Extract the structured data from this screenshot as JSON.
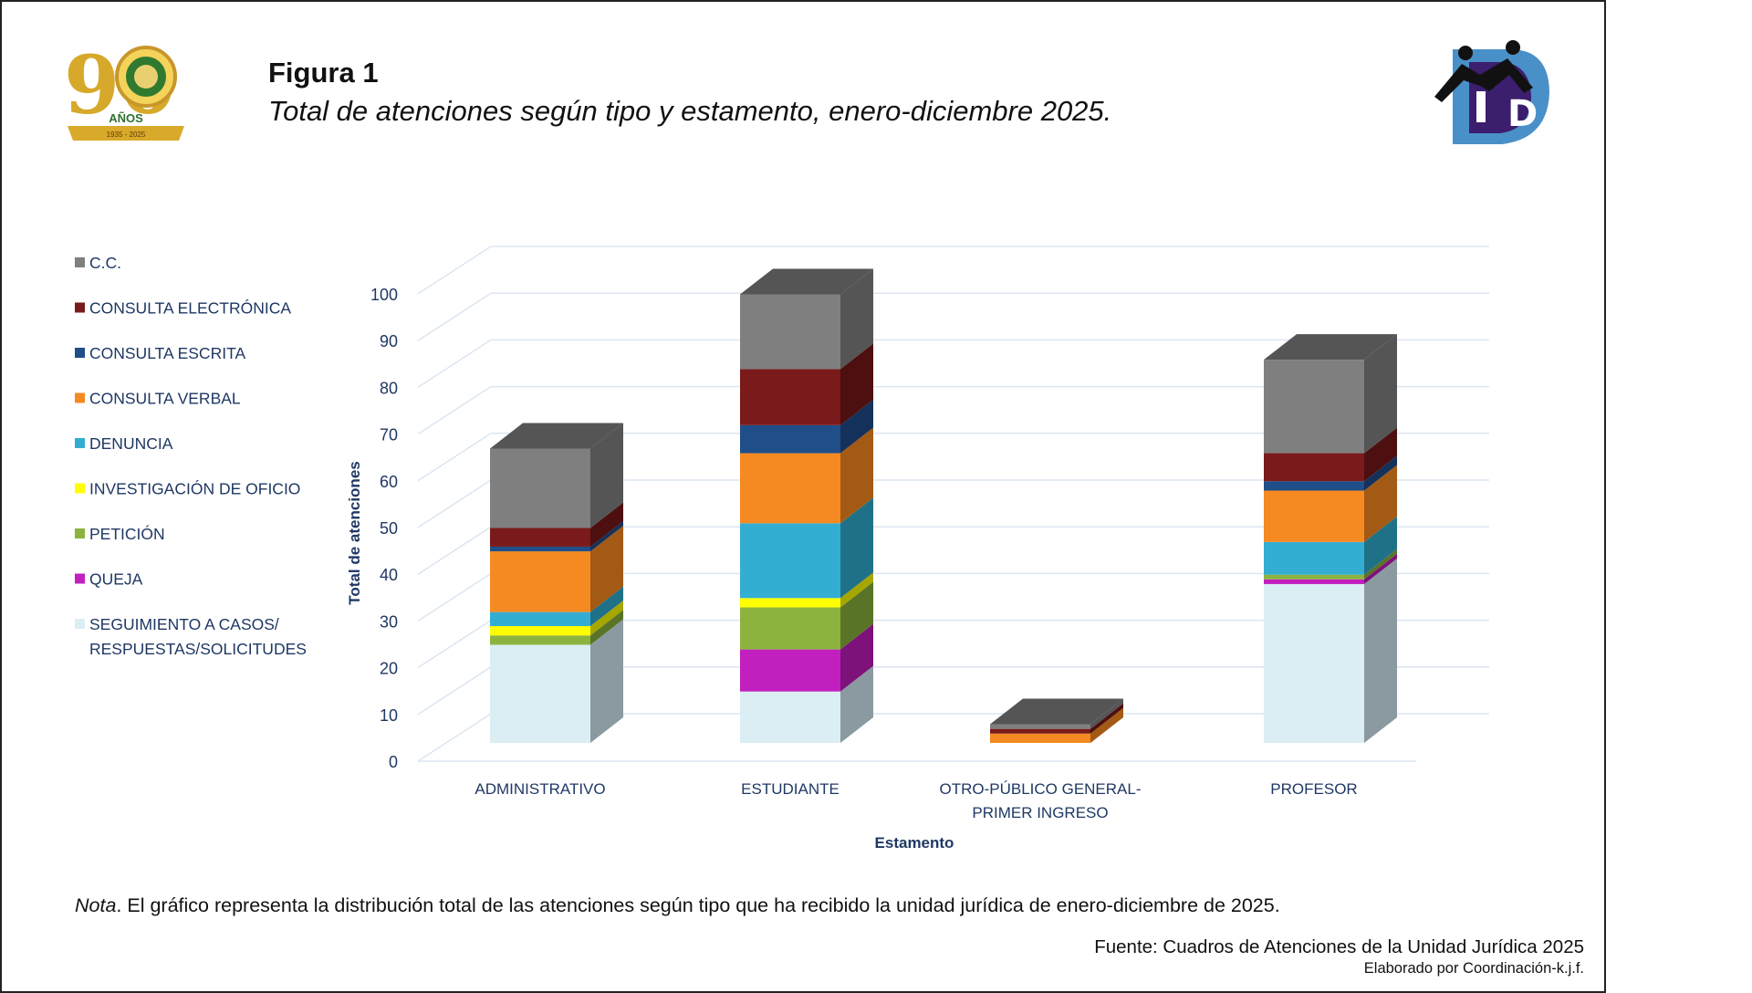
{
  "header": {
    "figure_label": "Figura 1",
    "figure_title": "Total de atenciones según tipo y estamento, enero-diciembre 2025."
  },
  "logos": {
    "left": {
      "number": "90",
      "subtitle": "AÑOS",
      "years": "1935 - 2025"
    },
    "right": {
      "letter": "D"
    }
  },
  "chart_data": {
    "type": "bar",
    "stacked": true,
    "three_d": true,
    "title": "Total de atenciones según tipo y estamento, enero-diciembre 2025.",
    "xlabel": "Estamento",
    "ylabel": "Total de atenciones",
    "ylim": [
      0,
      100
    ],
    "yticks": [
      0,
      10,
      20,
      30,
      40,
      50,
      60,
      70,
      80,
      90,
      100
    ],
    "categories": [
      [
        "ADMINISTRATIVO"
      ],
      [
        "ESTUDIANTE"
      ],
      [
        "OTRO-PÚBLICO GENERAL-",
        "PRIMER INGRESO"
      ],
      [
        "PROFESOR"
      ]
    ],
    "legend_position": "left",
    "series": [
      {
        "name": "SEGUIMIENTO A CASOS/ RESPUESTAS/SOLICITUDES",
        "legend_lines": [
          "SEGUIMIENTO A CASOS/",
          "RESPUESTAS/SOLICITUDES"
        ],
        "color": "#dbeef4",
        "side": "#8a9aa0",
        "values": [
          21,
          11,
          0,
          34
        ]
      },
      {
        "name": "QUEJA",
        "legend_lines": [
          "QUEJA"
        ],
        "color": "#c21fbf",
        "side": "#7d127b",
        "values": [
          0,
          9,
          0,
          1
        ]
      },
      {
        "name": "PETICIÓN",
        "legend_lines": [
          "PETICIÓN"
        ],
        "color": "#8db33e",
        "side": "#5a7427",
        "values": [
          2,
          9,
          0,
          1
        ]
      },
      {
        "name": "INVESTIGACIÓN DE OFICIO",
        "legend_lines": [
          "INVESTIGACIÓN DE OFICIO"
        ],
        "color": "#ffff00",
        "side": "#a6a600",
        "values": [
          2,
          2,
          0,
          0
        ]
      },
      {
        "name": "DENUNCIA",
        "legend_lines": [
          "DENUNCIA"
        ],
        "color": "#33aed2",
        "side": "#1f7188",
        "values": [
          3,
          16,
          0,
          7
        ]
      },
      {
        "name": "CONSULTA VERBAL",
        "legend_lines": [
          "CONSULTA VERBAL"
        ],
        "color": "#f58a22",
        "side": "#a35a14",
        "values": [
          13,
          15,
          2,
          11
        ]
      },
      {
        "name": "CONSULTA ESCRITA",
        "legend_lines": [
          "CONSULTA ESCRITA"
        ],
        "color": "#1f4e89",
        "side": "#13315a",
        "values": [
          1,
          6,
          0,
          2
        ]
      },
      {
        "name": "CONSULTA ELECTRÓNICA",
        "legend_lines": [
          "CONSULTA ELECTRÓNICA"
        ],
        "color": "#7a1a1a",
        "side": "#4d0f0f",
        "values": [
          4,
          12,
          1,
          6
        ]
      },
      {
        "name": "C.C.",
        "legend_lines": [
          "C.C."
        ],
        "color": "#7f7f7f",
        "side": "#555555",
        "values": [
          17,
          16,
          1,
          20
        ]
      }
    ]
  },
  "footer": {
    "nota_label": "Nota",
    "nota_text": ". El gráfico representa la distribución total de  las atenciones según tipo que ha recibido la unidad jurídica de enero-diciembre de 2025.",
    "fuente": "Fuente: Cuadros de Atenciones de la Unidad Jurídica 2025",
    "elaborado": "Elaborado por Coordinación-k.j.f."
  }
}
